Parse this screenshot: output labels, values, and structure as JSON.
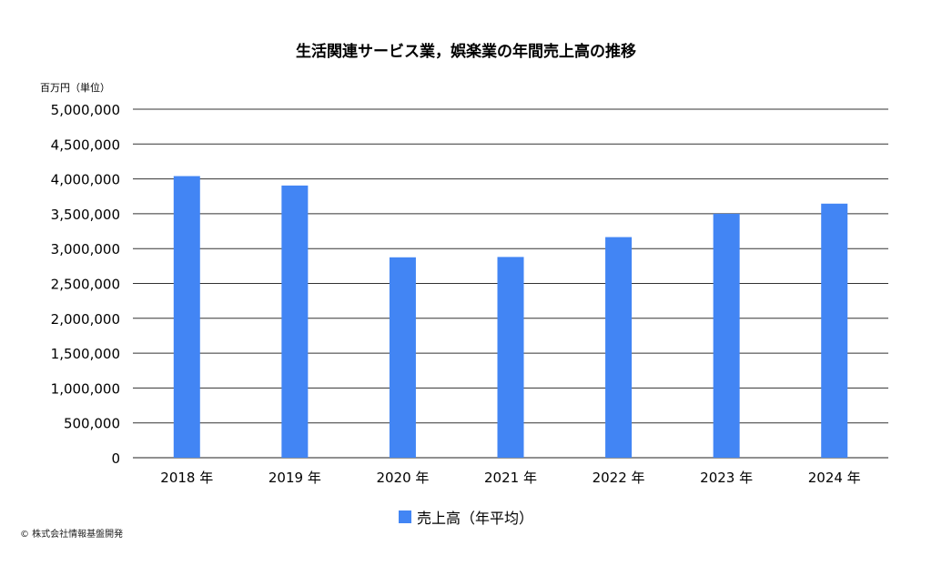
{
  "chart_data": {
    "type": "bar",
    "title": "生活関連サービス業，娯楽業の年間売上高の推移",
    "ylabel": "百万円（単位）",
    "xlabel": "",
    "categories": [
      "2018 年",
      "2019 年",
      "2020 年",
      "2021 年",
      "2022 年",
      "2023 年",
      "2024 年"
    ],
    "series": [
      {
        "name": "売上高（年平均）",
        "values": [
          4040000,
          3905000,
          2875000,
          2880000,
          3165000,
          3500000,
          3645000
        ],
        "color": "#4285f4"
      }
    ],
    "ylim": [
      0,
      5000000
    ],
    "yticks": [
      0,
      500000,
      1000000,
      1500000,
      2000000,
      2500000,
      3000000,
      3500000,
      4000000,
      4500000,
      5000000
    ],
    "ytick_labels": [
      "0",
      "500,000",
      "1,000,000",
      "1,500,000",
      "2,000,000",
      "2,500,000",
      "3,000,000",
      "3,500,000",
      "4,000,000",
      "4,500,000",
      "5,000,000"
    ],
    "grid": true,
    "legend_position": "bottom"
  },
  "footer": {
    "copyright": "© 株式会社情報基盤開発"
  }
}
